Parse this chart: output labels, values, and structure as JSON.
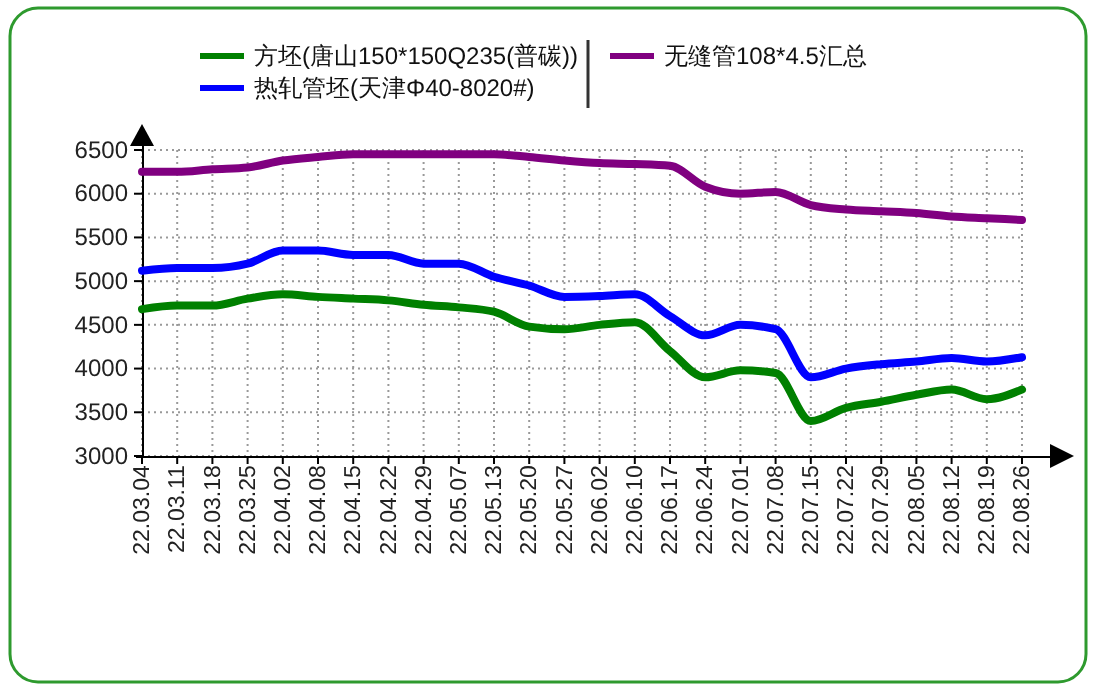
{
  "chart_data": {
    "type": "line",
    "categories": [
      "22.03.04",
      "22.03.11",
      "22.03.18",
      "22.03.25",
      "22.04.02",
      "22.04.08",
      "22.04.15",
      "22.04.22",
      "22.04.29",
      "22.05.07",
      "22.05.13",
      "22.05.20",
      "22.05.27",
      "22.06.02",
      "22.06.10",
      "22.06.17",
      "22.06.24",
      "22.07.01",
      "22.07.08",
      "22.07.15",
      "22.07.22",
      "22.07.29",
      "22.08.05",
      "22.08.12",
      "22.08.19",
      "22.08.26"
    ],
    "series": [
      {
        "name": "方坯(唐山150*150Q235(普碳))",
        "color": "#008000",
        "values": [
          4680,
          4720,
          4720,
          4800,
          4850,
          4820,
          4800,
          4780,
          4730,
          4700,
          4650,
          4480,
          4450,
          4500,
          4530,
          4200,
          3900,
          3980,
          3950,
          3400,
          3550,
          3620,
          3700,
          3760,
          3650,
          3760
        ]
      },
      {
        "name": "热轧管坯(天津Φ40-8020#)",
        "color": "#0000ff",
        "values": [
          5120,
          5150,
          5150,
          5200,
          5350,
          5350,
          5300,
          5300,
          5200,
          5200,
          5050,
          4950,
          4820,
          4830,
          4850,
          4600,
          4380,
          4500,
          4450,
          3900,
          4000,
          4050,
          4080,
          4120,
          4080,
          4130
        ]
      },
      {
        "name": "无缝管108*4.5汇总",
        "color": "#800080",
        "values": [
          6250,
          6250,
          6280,
          6300,
          6380,
          6420,
          6450,
          6450,
          6450,
          6450,
          6450,
          6420,
          6380,
          6350,
          6340,
          6320,
          6080,
          6000,
          6020,
          5870,
          5820,
          5800,
          5780,
          5740,
          5720,
          5700
        ]
      }
    ],
    "ylim": [
      3000,
      6500
    ],
    "yticks": [
      3000,
      3500,
      4000,
      4500,
      5000,
      5500,
      6000,
      6500
    ],
    "grid": true,
    "legend": "top",
    "marker": "none",
    "line_style": "solid"
  }
}
